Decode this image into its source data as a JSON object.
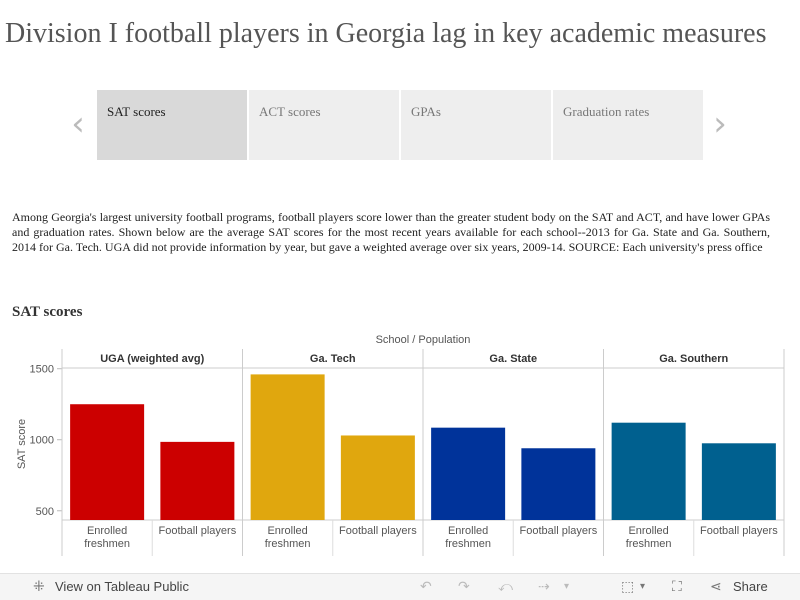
{
  "title": "Division I football players in Georgia lag in key academic measures",
  "tabs": [
    {
      "label": "SAT scores"
    },
    {
      "label": "ACT scores"
    },
    {
      "label": "GPAs"
    },
    {
      "label": "Graduation rates"
    }
  ],
  "nav": {
    "prev_icon": "chevron-left-icon",
    "next_icon": "chevron-right-icon"
  },
  "description": "Among Georgia's largest university football programs, football players score lower than the greater student body on the SAT and ACT, and have lower GPAs and graduation rates. Shown below are the average SAT scores for the most recent years available for each school--2013 for Ga. State and Ga. Southern, 2014 for Ga. Tech. UGA did not provide information by year, but gave a weighted average over six years, 2009-14. SOURCE: Each university's press office",
  "section_title": "SAT  scores",
  "chart_data": {
    "type": "bar",
    "header": "School  /  Population",
    "ylabel": "SAT score",
    "ylim": [
      400,
      1600
    ],
    "yticks": [
      500,
      1000,
      1500
    ],
    "grid": false,
    "panels": [
      {
        "name": "UGA (weighted avg)",
        "color": "#cc0000",
        "bars": [
          {
            "label": "Enrolled freshmen",
            "value": 1250
          },
          {
            "label": "Football players",
            "value": 985
          }
        ]
      },
      {
        "name": "Ga. Tech",
        "color": "#e0a70e",
        "bars": [
          {
            "label": "Enrolled freshmen",
            "value": 1460
          },
          {
            "label": "Football players",
            "value": 1030
          }
        ]
      },
      {
        "name": "Ga. State",
        "color": "#00339a",
        "bars": [
          {
            "label": "Enrolled freshmen",
            "value": 1085
          },
          {
            "label": "Football players",
            "value": 940
          }
        ]
      },
      {
        "name": "Ga. Southern",
        "color": "#00608f",
        "bars": [
          {
            "label": "Enrolled freshmen",
            "value": 1120
          },
          {
            "label": "Football players",
            "value": 975
          }
        ]
      }
    ]
  },
  "toolbar": {
    "view_label": "View on Tableau Public",
    "share_label": "Share",
    "icons": [
      "tableau-logo-icon",
      "undo-icon",
      "redo-icon",
      "revert-icon",
      "refresh-icon",
      "download-icon",
      "fullscreen-icon",
      "share-icon"
    ]
  }
}
